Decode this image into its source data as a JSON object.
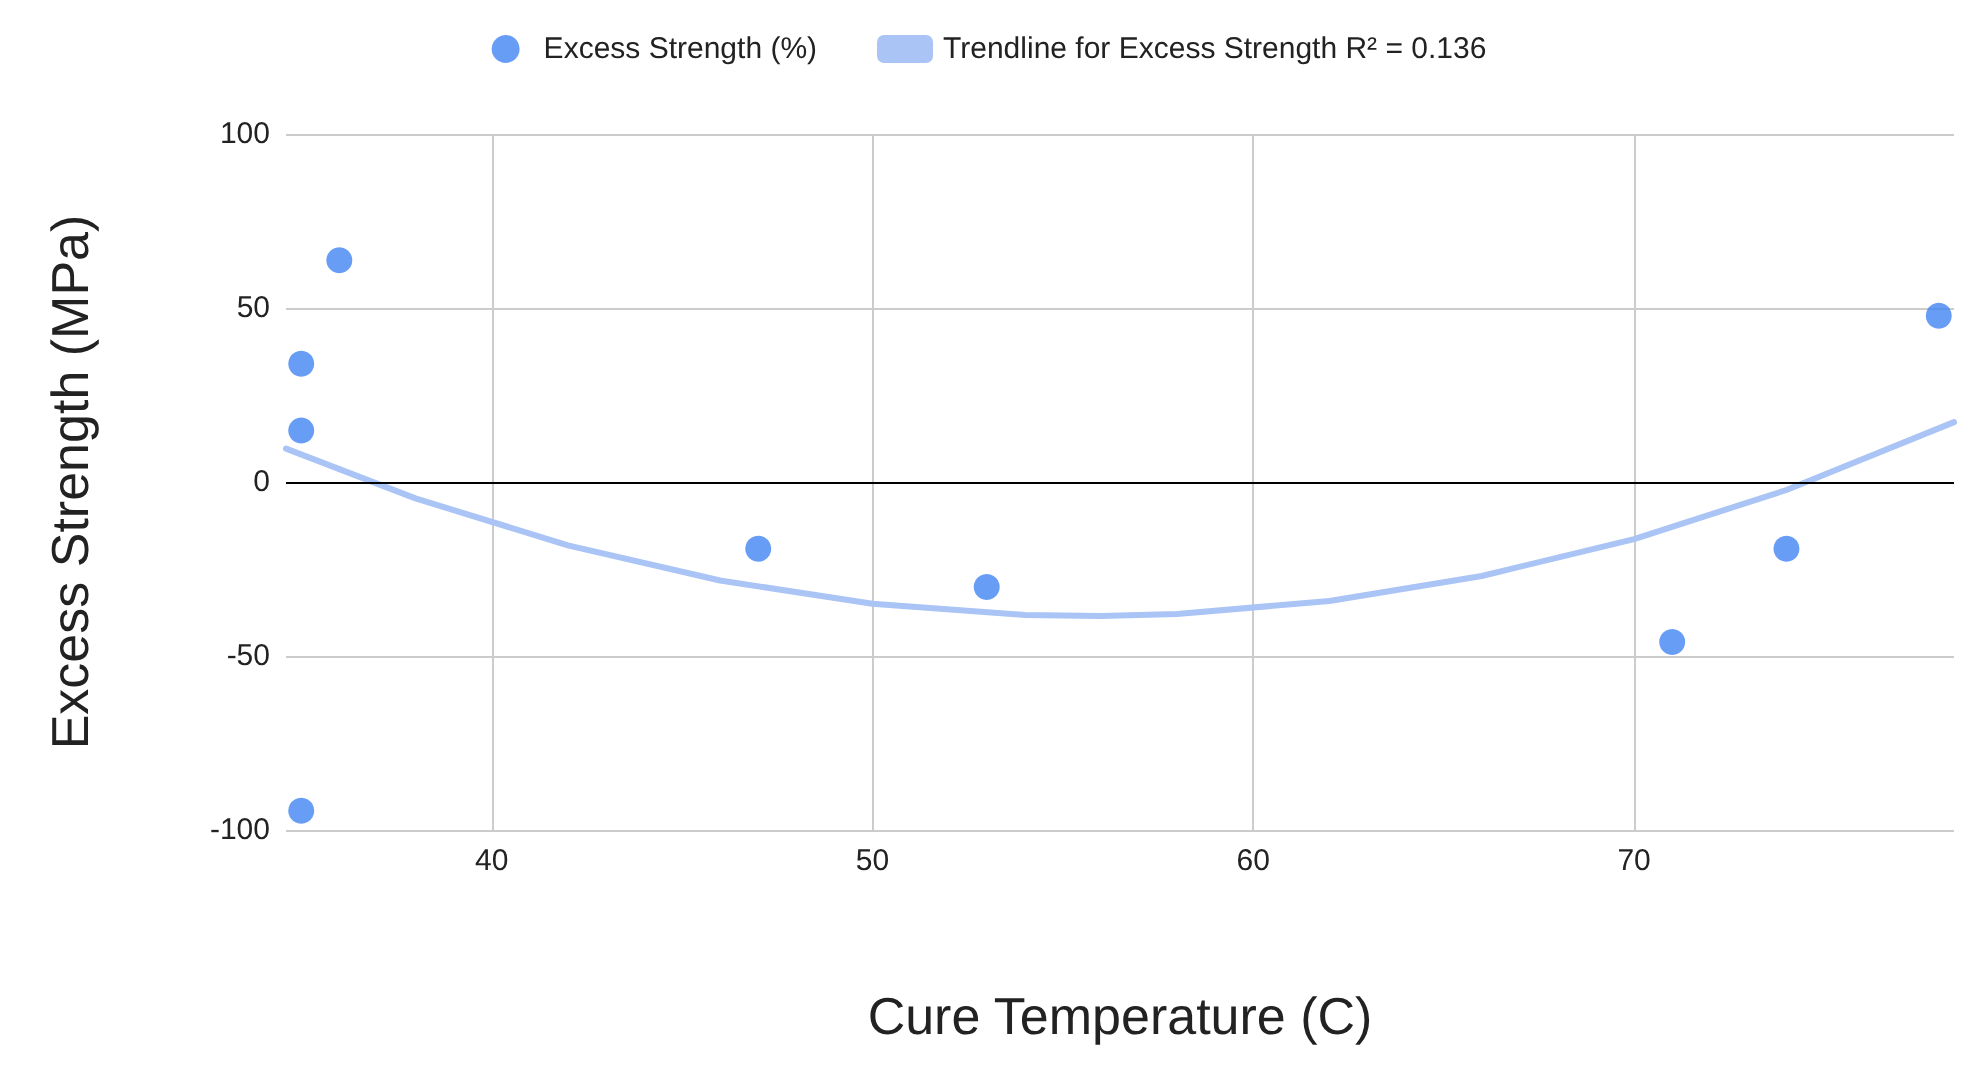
{
  "chart_data": {
    "type": "scatter",
    "xlabel": "Cure Temperature (C)",
    "ylabel": "Excess Strength (MPa)",
    "xlim": [
      34.6,
      78.4
    ],
    "xticks": [
      40,
      50,
      60,
      70
    ],
    "ylim": [
      -100,
      100
    ],
    "yticks": [
      -100,
      -50,
      0,
      50,
      100
    ],
    "grid": true,
    "legend": "top",
    "marker": "circle",
    "series": [
      {
        "name": "Excess Strength (%)",
        "color": "#4285f4",
        "x": [
          35,
          35,
          35,
          36,
          47,
          53,
          71,
          74,
          78
        ],
        "values": [
          34,
          14.8,
          -94.5,
          63.7,
          -19.2,
          -30.2,
          -46,
          -19.2,
          47.8
        ]
      },
      {
        "name": "Trendline for Excess Strength R² = 0.136",
        "type": "line",
        "marker": "none",
        "line_style": "solid",
        "color": "#a9c4f5",
        "x": [
          34.6,
          38,
          42,
          46,
          50,
          54,
          56,
          58,
          62,
          66,
          70,
          74,
          78.4
        ],
        "values": [
          9.6,
          -4.7,
          -18.2,
          -28.3,
          -35,
          -38.2,
          -38.5,
          -37.9,
          -34.2,
          -27,
          -16.4,
          -2.3,
          17.2
        ]
      }
    ],
    "ref_lines": [
      {
        "axis": "y",
        "value": 0,
        "color": "#000000"
      }
    ]
  }
}
